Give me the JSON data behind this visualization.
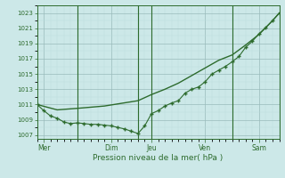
{
  "xlabel": "Pression niveau de la mer( hPa )",
  "bg_color": "#cce8e8",
  "grid_major_color": "#99bbbb",
  "grid_minor_color": "#bbdddd",
  "line_color": "#2d6b2d",
  "ylim": [
    1006.5,
    1024.0
  ],
  "yticks": [
    1007,
    1009,
    1011,
    1013,
    1015,
    1017,
    1019,
    1021,
    1023
  ],
  "xlim": [
    0,
    18
  ],
  "day_ticks": [
    0.5,
    5.5,
    8.5,
    12.5,
    16.5
  ],
  "day_labels": [
    "Mer",
    "Dim",
    "Jeu",
    "Ven",
    "Sam"
  ],
  "vline_positions": [
    3.0,
    7.5,
    8.5,
    14.5,
    18.0
  ],
  "smooth_x": [
    0,
    1.5,
    3.0,
    5.0,
    7.5,
    8.5,
    9.5,
    10.5,
    11.5,
    12.5,
    13.5,
    14.5,
    15.5,
    16.5,
    17.5,
    18.0
  ],
  "smooth_y": [
    1011.0,
    1010.3,
    1010.5,
    1010.8,
    1011.5,
    1012.3,
    1013.0,
    1013.8,
    1014.8,
    1015.8,
    1016.8,
    1017.5,
    1018.8,
    1020.2,
    1022.0,
    1023.0
  ],
  "detail_x": [
    0,
    0.5,
    1.0,
    1.5,
    2.0,
    2.5,
    3.0,
    3.5,
    4.0,
    4.5,
    5.0,
    5.5,
    6.0,
    6.5,
    7.0,
    7.5,
    8.0,
    8.5,
    9.0,
    9.5,
    10.0,
    10.5,
    11.0,
    11.5,
    12.0,
    12.5,
    13.0,
    13.5,
    14.0,
    14.5,
    15.0,
    15.5,
    16.0,
    16.5,
    17.0,
    17.5,
    18.0
  ],
  "detail_y": [
    1011.0,
    1010.2,
    1009.5,
    1009.2,
    1008.7,
    1008.5,
    1008.6,
    1008.5,
    1008.4,
    1008.4,
    1008.3,
    1008.2,
    1008.0,
    1007.8,
    1007.5,
    1007.2,
    1008.2,
    1009.8,
    1010.2,
    1010.8,
    1011.2,
    1011.5,
    1012.5,
    1013.0,
    1013.3,
    1014.0,
    1015.0,
    1015.5,
    1016.0,
    1016.6,
    1017.3,
    1018.5,
    1019.3,
    1020.3,
    1021.1,
    1022.0,
    1023.0
  ]
}
